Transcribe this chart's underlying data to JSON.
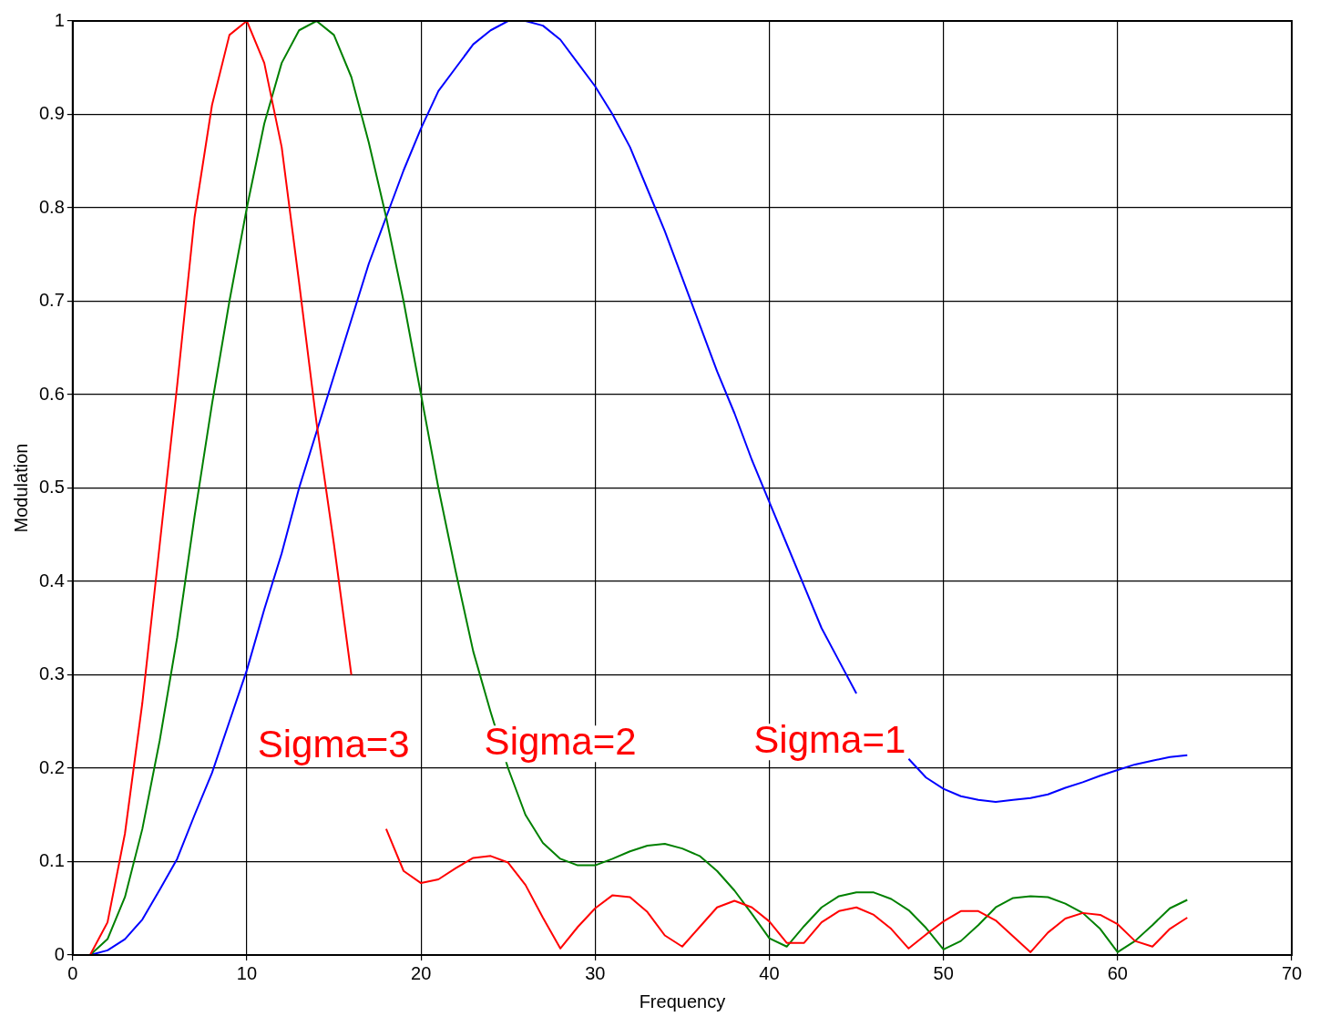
{
  "chart_data": {
    "type": "line",
    "xlabel": "Frequency",
    "ylabel": "Modulation",
    "x": [
      1,
      2,
      3,
      4,
      5,
      6,
      7,
      8,
      9,
      10,
      11,
      12,
      13,
      14,
      15,
      16,
      17,
      18,
      19,
      20,
      21,
      22,
      23,
      24,
      25,
      26,
      27,
      28,
      29,
      30,
      31,
      32,
      33,
      34,
      35,
      36,
      37,
      38,
      39,
      40,
      41,
      42,
      43,
      44,
      45,
      46,
      47,
      48,
      49,
      50,
      51,
      52,
      53,
      54,
      55,
      56,
      57,
      58,
      59,
      60,
      61,
      62,
      63,
      64
    ],
    "series": [
      {
        "color": "#ff0000",
        "values": [
          0,
          0.035,
          0.13,
          0.27,
          0.44,
          0.61,
          0.79,
          0.91,
          0.985,
          1,
          0.955,
          0.865,
          0.72,
          0.57,
          0.44,
          0.3,
          null,
          0.135,
          0.09,
          0.077,
          0.081,
          0.093,
          0.104,
          0.106,
          0.099,
          0.075,
          0.04,
          0.007,
          0.03,
          0.05,
          0.064,
          0.062,
          0.046,
          0.021,
          0.009,
          0.03,
          0.051,
          0.058,
          0.051,
          0.036,
          0.013,
          0.013,
          0.035,
          0.047,
          0.051,
          0.043,
          0.028,
          0.007,
          0.022,
          0.036,
          0.047,
          0.047,
          0.037,
          0.02,
          0.003,
          0.024,
          0.039,
          0.045,
          0.043,
          0.033,
          0.015,
          0.009,
          0.028,
          0.04
        ]
      },
      {
        "color": "#008000",
        "values": [
          0,
          0.017,
          0.062,
          0.135,
          0.23,
          0.34,
          0.47,
          0.59,
          0.7,
          0.8,
          0.89,
          0.955,
          0.99,
          1,
          0.985,
          0.94,
          0.87,
          0.79,
          0.7,
          0.6,
          0.5,
          0.41,
          0.325,
          0.26,
          0.2,
          0.15,
          0.12,
          0.103,
          0.096,
          0.096,
          0.103,
          0.111,
          0.117,
          0.119,
          0.114,
          0.106,
          0.09,
          0.069,
          0.044,
          0.018,
          0.009,
          0.031,
          0.051,
          0.063,
          0.067,
          0.067,
          0.06,
          0.048,
          0.029,
          0.006,
          0.015,
          0.032,
          0.051,
          0.061,
          0.063,
          0.062,
          0.055,
          0.045,
          0.028,
          0.003,
          0.015,
          0.032,
          0.05,
          0.059
        ]
      },
      {
        "color": "#0000ff",
        "values": [
          0,
          0.005,
          0.017,
          0.038,
          0.07,
          0.103,
          0.15,
          0.195,
          0.25,
          0.305,
          0.37,
          0.43,
          0.5,
          0.56,
          0.62,
          0.68,
          0.74,
          0.79,
          0.84,
          0.885,
          0.925,
          0.95,
          0.975,
          0.99,
          1,
          1,
          0.995,
          0.98,
          0.955,
          0.93,
          0.9,
          0.865,
          0.82,
          0.775,
          0.725,
          0.675,
          0.625,
          0.58,
          0.53,
          0.485,
          0.44,
          0.395,
          0.35,
          0.315,
          0.28,
          null,
          null,
          0.21,
          0.19,
          0.178,
          0.17,
          0.166,
          0.164,
          0.166,
          0.168,
          0.172,
          0.179,
          0.185,
          0.192,
          0.198,
          0.204,
          0.208,
          0.212,
          0.214
        ]
      }
    ],
    "xlim": [
      0,
      70
    ],
    "xticks": [
      0,
      10,
      20,
      30,
      40,
      50,
      60,
      70
    ],
    "ylim": [
      0,
      1
    ],
    "yticks": [
      0,
      0.1,
      0.2,
      0.3,
      0.4,
      0.5,
      0.6,
      0.7,
      0.8,
      0.9,
      1
    ],
    "grid": true,
    "legend": false,
    "line_style": "solid",
    "marker": "none",
    "annotations": [
      "Sigma=3",
      "Sigma=2",
      "Sigma=1"
    ]
  }
}
